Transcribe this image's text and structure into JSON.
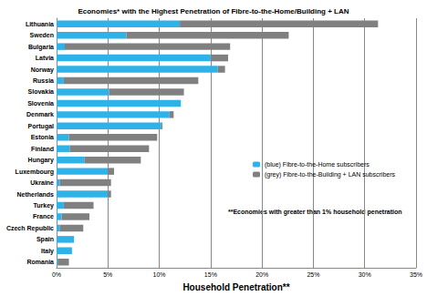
{
  "chart_data": {
    "type": "bar",
    "title": "Economies* with the Highest Penetration of Fibre-to-the-Home/Building + LAN",
    "orientation": "horizontal",
    "stacked": true,
    "grid": true,
    "legend": "right",
    "xlabel": "Household Penetration**",
    "annotations": [
      "**Economies with greater than 1% household penetration"
    ],
    "categories": [
      "Lithuania",
      "Sweden",
      "Bulgaria",
      "Latvia",
      "Norway",
      "Russia",
      "Slovakia",
      "Slovenia",
      "Denmark",
      "Portugal",
      "Estonia",
      "Finland",
      "Hungary",
      "Luxembourg",
      "Ukraine",
      "Netherlands",
      "Turkey",
      "France",
      "Czech Republic",
      "Spain",
      "Italy",
      "Romania"
    ],
    "series": [
      {
        "name": "(blue) Fibre-to-the-Home subscribers",
        "color": "#2fb2e8",
        "values": [
          12,
          6.8,
          0.8,
          15,
          15.7,
          0.7,
          5.1,
          12.1,
          11,
          10.2,
          1.2,
          1.3,
          2.7,
          5,
          0.3,
          5,
          0.7,
          0.5,
          0.3,
          1.7,
          1.5,
          0.1
        ]
      },
      {
        "name": "(grey) Fibre-to-the-Building + LAN subscribers",
        "color": "#808080",
        "values": [
          19.3,
          15.8,
          16.1,
          1.7,
          0.7,
          13.1,
          7.3,
          0,
          0.4,
          0.1,
          8.6,
          7.7,
          5.5,
          0.6,
          5,
          0.3,
          2.9,
          2.7,
          2.3,
          0,
          0,
          1.1
        ]
      }
    ],
    "xlim": [
      0,
      35
    ],
    "xticks": [
      {
        "value": 0,
        "label": "0%"
      },
      {
        "value": 5,
        "label": "5%"
      },
      {
        "value": 10,
        "label": "10%"
      },
      {
        "value": 15,
        "label": "15%"
      },
      {
        "value": 20,
        "label": "20%"
      },
      {
        "value": 25,
        "label": "25%"
      },
      {
        "value": 30,
        "label": "30%"
      },
      {
        "value": 35,
        "label": "35%"
      }
    ]
  }
}
